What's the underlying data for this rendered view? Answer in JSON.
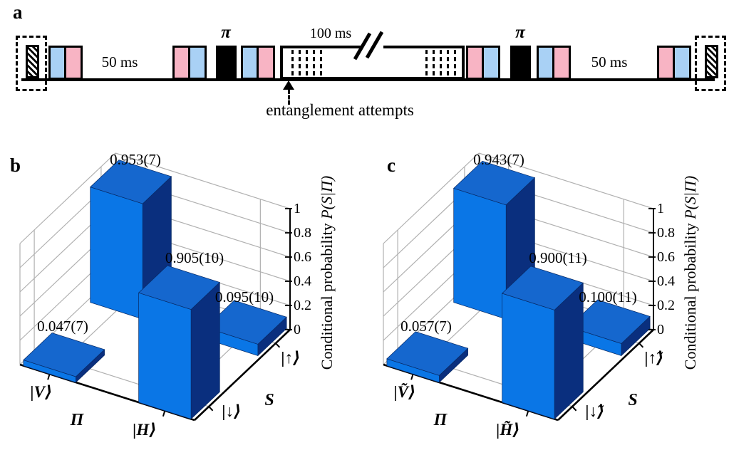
{
  "panels": {
    "a": {
      "label": "a",
      "wait_left": "50 ms",
      "wait_right": "50 ms",
      "pi_left": "π",
      "pi_right": "π",
      "window_label": "100 ms",
      "caption": "entanglement attempts"
    },
    "b": {
      "label": "b"
    },
    "c": {
      "label": "c"
    }
  },
  "colors": {
    "pulse_pink": "#F8B4C4",
    "pulse_blue": "#A9D1F5",
    "pulse_black": "#000000",
    "bar_top": "#1567CE",
    "bar_front": "#0A76E6",
    "bar_side": "#0A2F7E",
    "grid_gray": "#B0B0B0"
  },
  "chart_data": [
    {
      "panel": "b",
      "type": "bar",
      "subtype": "bar3d",
      "x_axis": {
        "name": "Π",
        "categories": [
          "|V⟩",
          "|H⟩"
        ]
      },
      "y_axis": {
        "name": "S",
        "categories": [
          "|↓⟩",
          "|↑⟩"
        ]
      },
      "z_axis": {
        "title_plain": "Conditional probability ",
        "title_math": "P(S|Π)",
        "tick_labels": [
          "0",
          "0.2",
          "0.4",
          "0.6",
          "0.8",
          "1"
        ],
        "range": [
          0,
          1
        ],
        "grid": true
      },
      "bars": [
        {
          "x": "|V⟩",
          "y": "|↓⟩",
          "value": 0.047,
          "label": "0.047(7)"
        },
        {
          "x": "|V⟩",
          "y": "|↑⟩",
          "value": 0.953,
          "label": "0.953(7)"
        },
        {
          "x": "|H⟩",
          "y": "|↓⟩",
          "value": 0.905,
          "label": "0.905(10)"
        },
        {
          "x": "|H⟩",
          "y": "|↑⟩",
          "value": 0.095,
          "label": "0.095(10)"
        }
      ]
    },
    {
      "panel": "c",
      "type": "bar",
      "subtype": "bar3d",
      "x_axis": {
        "name": "Π",
        "categories": [
          "|Ṽ⟩",
          "|H̃⟩"
        ]
      },
      "y_axis": {
        "name": "S",
        "categories": [
          "|↓̃⟩",
          "|↑̃⟩"
        ]
      },
      "z_axis": {
        "title_plain": "Conditional probability ",
        "title_math": "P(S|Π)",
        "tick_labels": [
          "0",
          "0.2",
          "0.4",
          "0.6",
          "0.8",
          "1"
        ],
        "range": [
          0,
          1
        ],
        "grid": true
      },
      "bars": [
        {
          "x": "|Ṽ⟩",
          "y": "|↓̃⟩",
          "value": 0.057,
          "label": "0.057(7)"
        },
        {
          "x": "|Ṽ⟩",
          "y": "|↑̃⟩",
          "value": 0.943,
          "label": "0.943(7)"
        },
        {
          "x": "|H̃⟩",
          "y": "|↓̃⟩",
          "value": 0.9,
          "label": "0.900(11)"
        },
        {
          "x": "|H̃⟩",
          "y": "|↑̃⟩",
          "value": 0.1,
          "label": "0.100(11)"
        }
      ]
    }
  ]
}
